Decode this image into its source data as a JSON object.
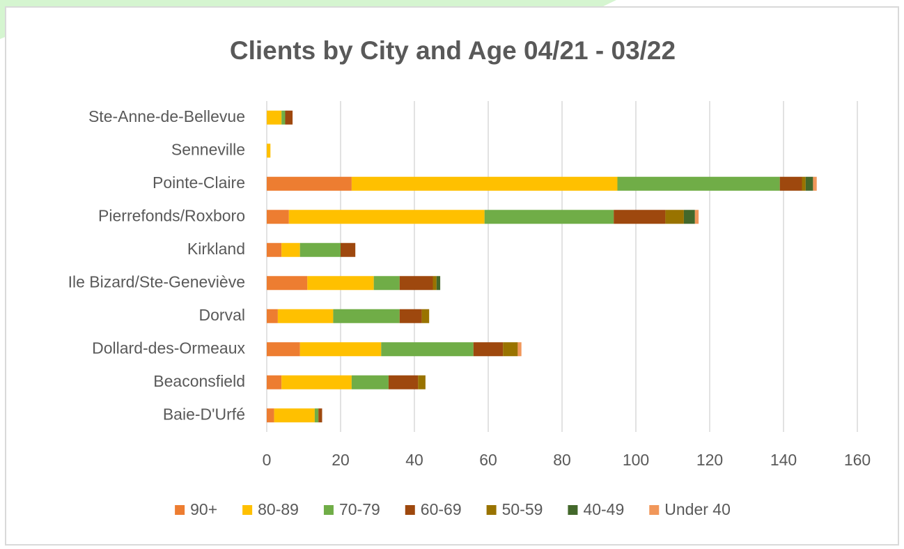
{
  "chart_data": {
    "type": "bar",
    "orientation": "horizontal",
    "stacked": true,
    "title": "Clients by City and Age 04/21 - 03/22",
    "categories": [
      "Baie-D'Urfé",
      "Beaconsfield",
      "Dollard-des-Ormeaux",
      "Dorval",
      "Ile Bizard/Ste-Geneviève",
      "Kirkland",
      "Pierrefonds/Roxboro",
      "Pointe-Claire",
      "Senneville",
      "Ste-Anne-de-Bellevue"
    ],
    "series": [
      {
        "name": "90+",
        "color": "#ed7d31",
        "values": [
          2,
          4,
          9,
          3,
          11,
          4,
          6,
          23,
          0,
          0
        ]
      },
      {
        "name": "80-89",
        "color": "#ffc000",
        "values": [
          11,
          19,
          22,
          15,
          18,
          5,
          53,
          72,
          1,
          4
        ]
      },
      {
        "name": "70-79",
        "color": "#70ad47",
        "values": [
          1,
          10,
          25,
          18,
          7,
          11,
          35,
          44,
          0,
          1
        ]
      },
      {
        "name": "60-69",
        "color": "#9e480e",
        "values": [
          1,
          8,
          8,
          6,
          9,
          4,
          14,
          6,
          0,
          2
        ]
      },
      {
        "name": "50-59",
        "color": "#997300",
        "values": [
          0,
          2,
          4,
          2,
          1,
          0,
          5,
          1,
          0,
          0
        ]
      },
      {
        "name": "40-49",
        "color": "#43682b",
        "values": [
          0,
          0,
          0,
          0,
          1,
          0,
          3,
          2,
          0,
          0
        ]
      },
      {
        "name": "Under 40",
        "color": "#f1975a",
        "values": [
          0,
          0,
          1,
          0,
          0,
          0,
          1,
          1,
          0,
          0
        ]
      }
    ],
    "xlim": [
      0,
      160
    ],
    "xticks": [
      0,
      20,
      40,
      60,
      80,
      100,
      120,
      140,
      160
    ],
    "grid": true,
    "legend": "bottom"
  }
}
